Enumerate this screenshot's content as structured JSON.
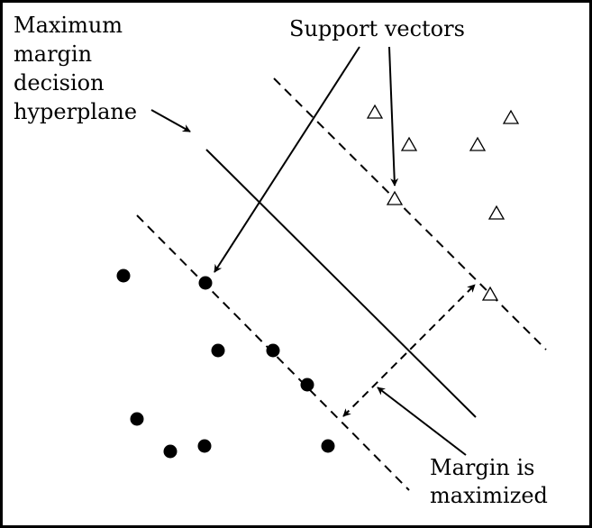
{
  "labels": {
    "hyperplane": [
      "Maximum",
      "margin",
      "decision",
      "hyperplane"
    ],
    "support_vectors": "Support vectors",
    "margin": [
      "Margin is",
      "maximized"
    ]
  },
  "colors": {
    "ink": "#000000",
    "background": "#ffffff"
  },
  "markers": {
    "class_a": "filled-circle",
    "class_b": "hollow-triangle"
  }
}
